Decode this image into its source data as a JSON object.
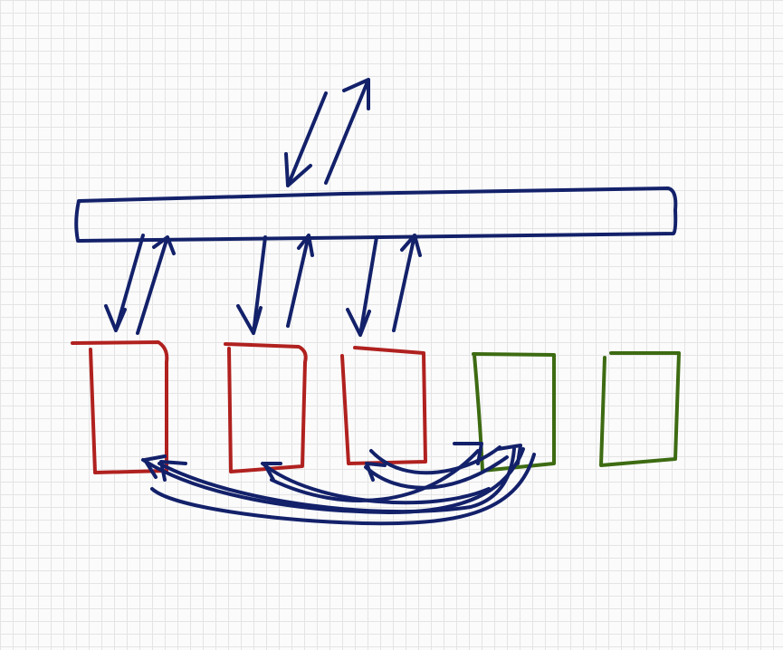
{
  "colors": {
    "paper": "#fbfbfb",
    "grid": "#e4e4e4",
    "bus": "#13216a",
    "arrow": "#13216a",
    "active_box": "#b0211f",
    "idle_box": "#3d6b12"
  },
  "diagram": {
    "bus": {
      "label": ""
    },
    "boxes": [
      {
        "state": "active"
      },
      {
        "state": "active"
      },
      {
        "state": "active"
      },
      {
        "state": "idle"
      },
      {
        "state": "idle"
      }
    ],
    "connections": {
      "external_to_bus": "bidirectional",
      "bus_to_active_boxes": "bidirectional",
      "box_to_box_links": "curved, bottom"
    }
  }
}
